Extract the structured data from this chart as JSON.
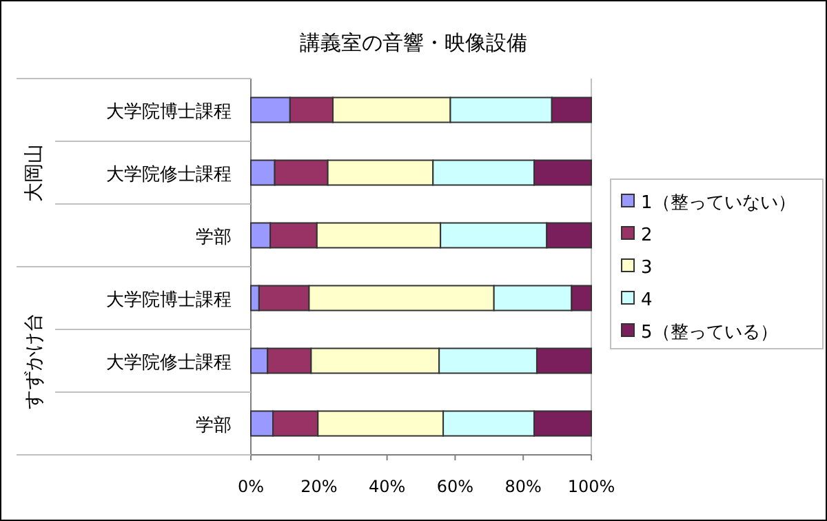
{
  "chart_data": {
    "type": "bar",
    "title": "講義室の音響・映像設備",
    "orientation": "horizontal",
    "stacked": true,
    "categories": [
      "大学院博士課程",
      "大学院修士課程",
      "学部",
      "大学院博士課程",
      "大学院修士課程",
      "学部"
    ],
    "series": [
      {
        "name": "1（整っていない）",
        "color": "#9999ff",
        "values": [
          11.5,
          7.0,
          5.7,
          2.4,
          4.9,
          6.5
        ]
      },
      {
        "name": "2",
        "color": "#993366",
        "values": [
          12.6,
          15.6,
          13.7,
          14.7,
          12.8,
          13.2
        ]
      },
      {
        "name": "3",
        "color": "#ffffcc",
        "values": [
          34.5,
          30.9,
          36.3,
          54.3,
          37.6,
          36.8
        ]
      },
      {
        "name": "4",
        "color": "#ccffff",
        "values": [
          29.8,
          29.7,
          31.2,
          22.8,
          28.7,
          26.7
        ]
      },
      {
        "name": "5（整っている）",
        "color": "#7a1f5c",
        "values": [
          11.6,
          16.8,
          13.1,
          5.8,
          16.0,
          16.8
        ]
      }
    ],
    "xlim": [
      0,
      100
    ],
    "xticks": [
      {
        "value": 0,
        "label": "0%"
      },
      {
        "value": 20,
        "label": "20%"
      },
      {
        "value": 40,
        "label": "40%"
      },
      {
        "value": 60,
        "label": "60%"
      },
      {
        "value": 80,
        "label": "80%"
      },
      {
        "value": 100,
        "label": "100%"
      }
    ],
    "annotations": [
      "大岡山",
      "すずかけ台"
    ],
    "legend": "right",
    "grid": false
  }
}
